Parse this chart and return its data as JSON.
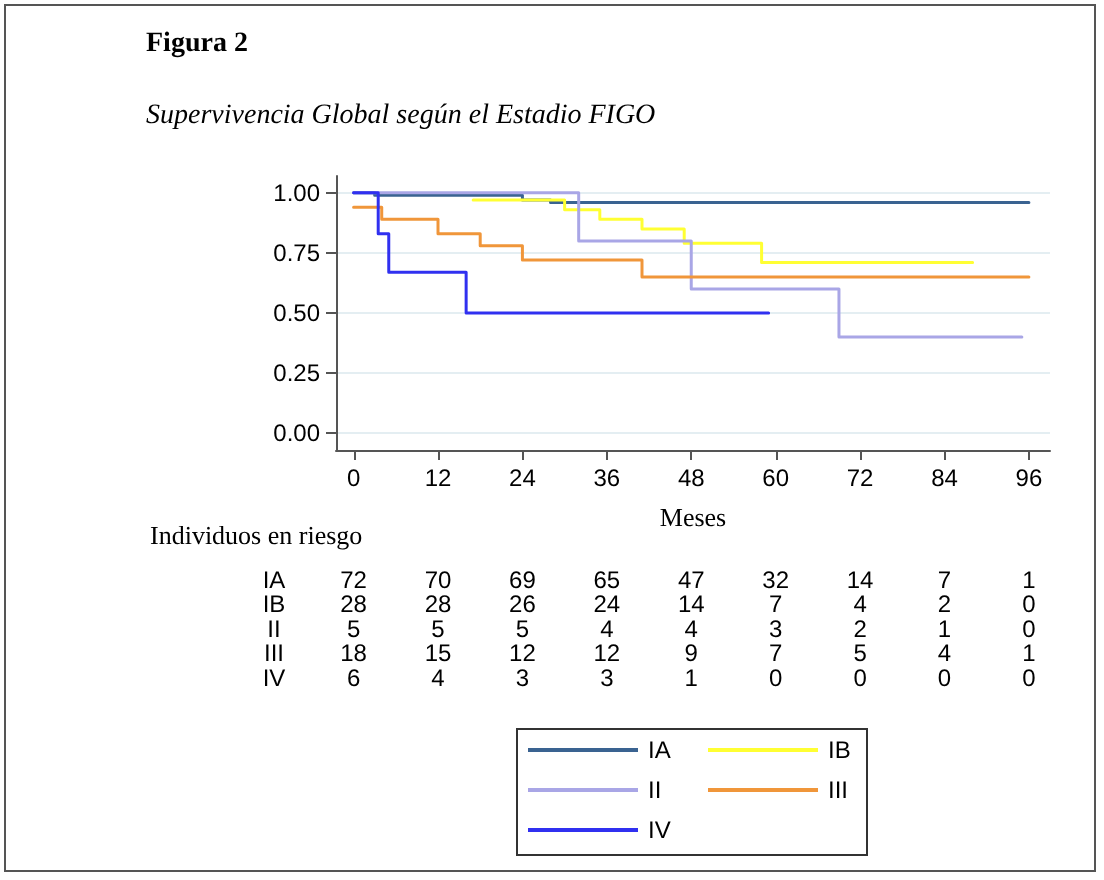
{
  "chart_data": {
    "type": "step",
    "title": "Figura 2",
    "subtitle": "Supervivencia Global según el Estadio FIGO",
    "xlabel": "Meses",
    "xlim": [
      -2.5,
      99
    ],
    "xticks": [
      0,
      12,
      24,
      36,
      48,
      60,
      72,
      84,
      96
    ],
    "ylim": [
      -0.07,
      1.07
    ],
    "yticks": [
      {
        "value": 0,
        "label": "0.00"
      },
      {
        "value": 0.25,
        "label": "0.25"
      },
      {
        "value": 0.5,
        "label": "0.50"
      },
      {
        "value": 0.75,
        "label": "0.75"
      },
      {
        "value": 1,
        "label": "1.00"
      }
    ],
    "grid": "y",
    "legend": "bottom",
    "marker": "none",
    "line_style": "solid",
    "series": [
      {
        "name": "IA",
        "color": "#3a6391",
        "x": [
          0,
          3,
          24,
          28,
          96
        ],
        "values": [
          1.0,
          0.99,
          0.97,
          0.96,
          0.96
        ]
      },
      {
        "name": "IB",
        "color": "#ffff33",
        "x": [
          17,
          30,
          35,
          41,
          47,
          58,
          88
        ],
        "values": [
          0.97,
          0.93,
          0.89,
          0.85,
          0.79,
          0.71,
          0.71
        ]
      },
      {
        "name": "II",
        "color": "#a9a6e6",
        "x": [
          0,
          32,
          48,
          69,
          95
        ],
        "values": [
          1.0,
          0.8,
          0.6,
          0.4,
          0.4
        ]
      },
      {
        "name": "III",
        "color": "#f0963a",
        "x": [
          0,
          4,
          12,
          18,
          24,
          41,
          96
        ],
        "values": [
          0.94,
          0.89,
          0.83,
          0.78,
          0.72,
          0.65,
          0.65
        ]
      },
      {
        "name": "IV",
        "color": "#3030f0",
        "x": [
          0,
          3.5,
          5,
          16,
          59
        ],
        "values": [
          1.0,
          0.83,
          0.67,
          0.5,
          0.5
        ]
      }
    ],
    "annotations": [
      "Individuos en riesgo",
      "IA 72 70 69 65 47 32 14 7 1",
      "IB 28 28 26 24 14 7 4 2 0",
      "II 5 5 5 4 4 3 2 1 0",
      "III 18 15 12 12 9 7 5 4 1",
      "IV 6 4 3 3 1 0 0 0 0"
    ]
  }
}
